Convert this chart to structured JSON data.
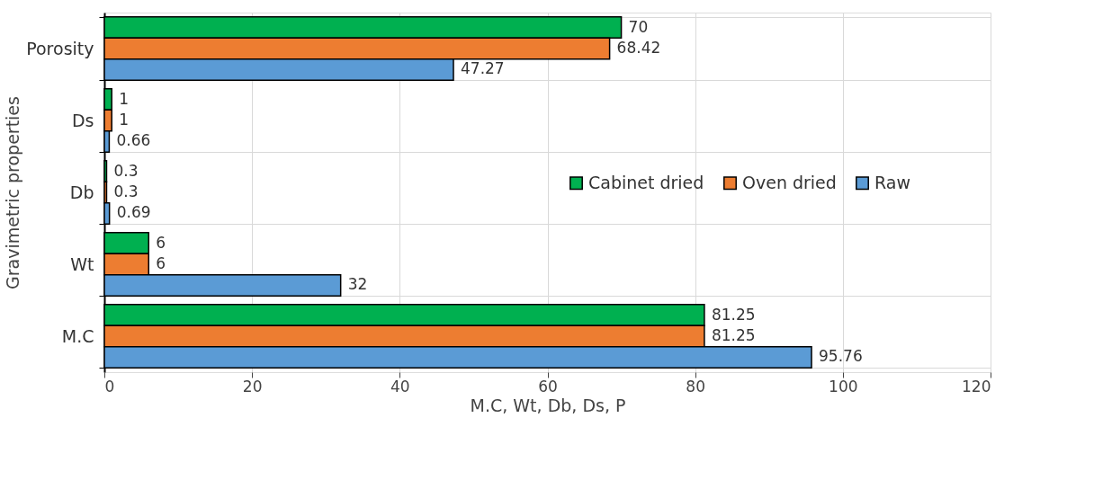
{
  "chart_data": {
    "type": "bar",
    "orientation": "horizontal",
    "xlabel": "M.C, Wt, Db, Ds, P",
    "ylabel": "Gravimetric properties",
    "categories": [
      "Porosity",
      "Ds",
      "Db",
      "Wt",
      "M.C"
    ],
    "series": [
      {
        "name": "Cabinet dried",
        "color": "#00b050",
        "values": [
          70,
          1,
          0.3,
          6,
          81.25
        ]
      },
      {
        "name": "Oven dried",
        "color": "#ed7d31",
        "values": [
          68.42,
          1,
          0.3,
          6,
          81.25
        ]
      },
      {
        "name": "Raw",
        "color": "#5b9bd5",
        "values": [
          47.27,
          0.66,
          0.69,
          32,
          95.76
        ]
      }
    ],
    "xlim": [
      0,
      120
    ],
    "xticks": [
      0,
      20,
      40,
      60,
      80,
      100,
      120
    ],
    "grid": true,
    "legend": "right",
    "data_labels": true
  }
}
